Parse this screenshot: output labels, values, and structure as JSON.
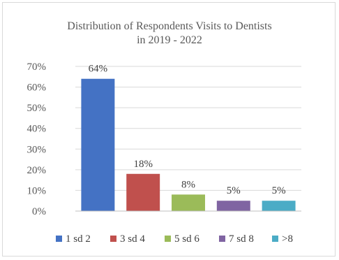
{
  "chart_data": {
    "type": "bar",
    "title": [
      "Distribution  of Respondents Visits to Dentists",
      "in 2019 - 2022"
    ],
    "categories": [
      "1 sd 2",
      "3 sd 4",
      "5 sd 6",
      "7 sd 8",
      ">8"
    ],
    "values": [
      64,
      18,
      8,
      5,
      5
    ],
    "data_labels": [
      "64%",
      "18%",
      "8%",
      "5%",
      "5%"
    ],
    "colors": [
      "#4472c4",
      "#c0504d",
      "#9bbb59",
      "#8064a2",
      "#4bacc6"
    ],
    "ylim": [
      0,
      70
    ],
    "yticks": [
      0,
      10,
      20,
      30,
      40,
      50,
      60,
      70
    ],
    "ytick_labels": [
      "0%",
      "10%",
      "20%",
      "30%",
      "40%",
      "50%",
      "60%",
      "70%"
    ],
    "grid": true,
    "legend_position": "bottom"
  }
}
